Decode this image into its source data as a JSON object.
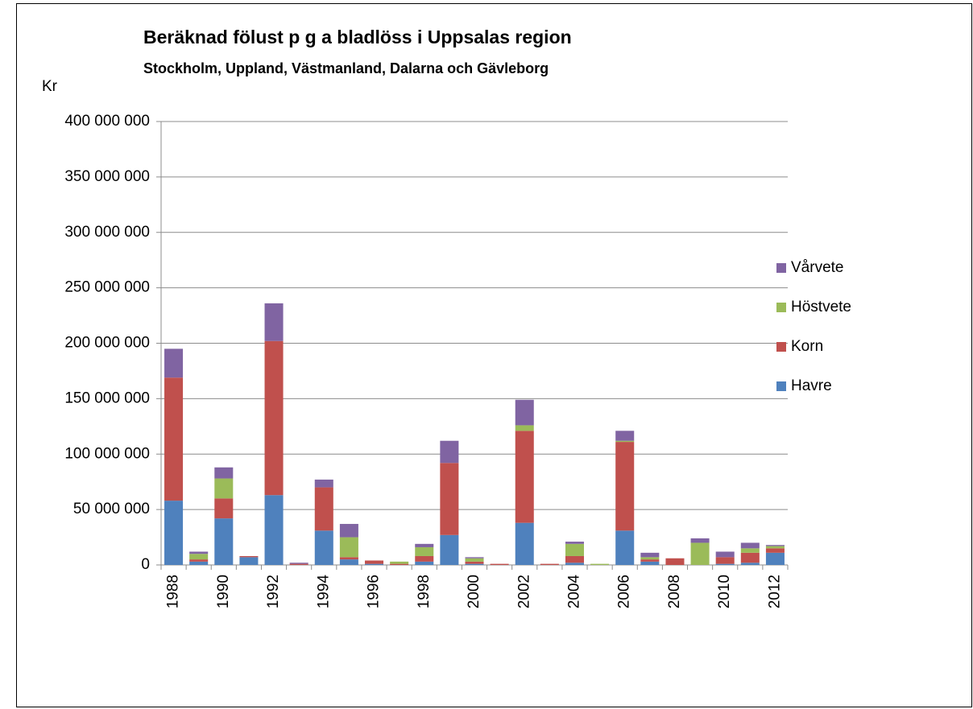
{
  "chart_data": {
    "type": "stacked_bar",
    "title": "Beräknad fölust p g a bladlöss i Uppsalas region",
    "subtitle": "Stockholm, Uppland, Västmanland, Dalarna och Gävleborg",
    "y_label": "Kr",
    "categories": [
      "1988",
      null,
      "1990",
      null,
      "1992",
      null,
      "1994",
      null,
      "1996",
      null,
      "1998",
      null,
      "2000",
      null,
      "2002",
      null,
      "2004",
      null,
      "2006",
      null,
      "2008",
      null,
      "2010",
      null,
      "2012"
    ],
    "series": [
      {
        "name": "Havre",
        "color": "#4f81bd",
        "values": [
          58000000,
          3000000,
          42000000,
          7000000,
          63000000,
          0,
          31000000,
          5000000,
          1000000,
          0,
          3000000,
          27000000,
          1000000,
          0,
          38000000,
          0,
          2000000,
          0,
          31000000,
          3000000,
          0,
          0,
          1000000,
          2000000,
          11000000
        ]
      },
      {
        "name": "Korn",
        "color": "#c0504d",
        "values": [
          111000000,
          2000000,
          18000000,
          1000000,
          139000000,
          1000000,
          39000000,
          2000000,
          3000000,
          1000000,
          5000000,
          65000000,
          2000000,
          1000000,
          83000000,
          1000000,
          6000000,
          0,
          80000000,
          2000000,
          6000000,
          0,
          6000000,
          9000000,
          4000000
        ]
      },
      {
        "name": "Höstvete",
        "color": "#9bbb59",
        "values": [
          0,
          5000000,
          18000000,
          0,
          0,
          0,
          0,
          18000000,
          0,
          2000000,
          8000000,
          0,
          3000000,
          0,
          5000000,
          0,
          11000000,
          1000000,
          1000000,
          2000000,
          0,
          20000000,
          0,
          4000000,
          2000000
        ]
      },
      {
        "name": "Vårvete",
        "color": "#8064a2",
        "values": [
          26000000,
          2000000,
          10000000,
          0,
          34000000,
          1000000,
          7000000,
          12000000,
          0,
          0,
          3000000,
          20000000,
          1000000,
          0,
          23000000,
          0,
          2000000,
          0,
          9000000,
          4000000,
          0,
          4000000,
          5000000,
          5000000,
          1000000
        ]
      }
    ],
    "ylim": [
      0,
      400000000
    ],
    "yticks": [
      0,
      {
        "value": 50000000,
        "label": "50 000 000"
      },
      {
        "value": 100000000,
        "label": "100 000 000"
      },
      {
        "value": 150000000,
        "label": "150 000 000"
      },
      {
        "value": 200000000,
        "label": "200 000 000"
      },
      {
        "value": 250000000,
        "label": "250 000 000"
      },
      {
        "value": 300000000,
        "label": "300 000 000"
      },
      {
        "value": 350000000,
        "label": "350 000 000"
      },
      {
        "value": 400000000,
        "label": "400 000 000"
      }
    ],
    "grid": true,
    "legend": "right"
  }
}
